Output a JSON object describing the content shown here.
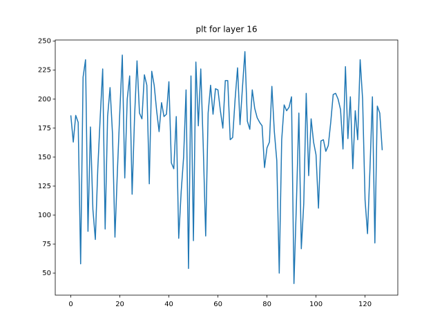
{
  "chart_data": {
    "type": "line",
    "title": "plt for layer 16",
    "x": [
      0,
      1,
      2,
      3,
      4,
      5,
      6,
      7,
      8,
      9,
      10,
      11,
      12,
      13,
      14,
      15,
      16,
      17,
      18,
      19,
      20,
      21,
      22,
      23,
      24,
      25,
      26,
      27,
      28,
      29,
      30,
      31,
      32,
      33,
      34,
      35,
      36,
      37,
      38,
      39,
      40,
      41,
      42,
      43,
      44,
      45,
      46,
      47,
      48,
      49,
      50,
      51,
      52,
      53,
      54,
      55,
      56,
      57,
      58,
      59,
      60,
      61,
      62,
      63,
      64,
      65,
      66,
      67,
      68,
      69,
      70,
      71,
      72,
      73,
      74,
      75,
      76,
      77,
      78,
      79,
      80,
      81,
      82,
      83,
      84,
      85,
      86,
      87,
      88,
      89,
      90,
      91,
      92,
      93,
      94,
      95,
      96,
      97,
      98,
      99,
      100,
      101,
      102,
      103,
      104,
      105,
      106,
      107,
      108,
      109,
      110,
      111,
      112,
      113,
      114,
      115,
      116,
      117,
      118,
      119,
      120,
      121,
      122,
      123,
      124,
      125,
      126,
      127
    ],
    "series": [
      {
        "color": "#1f77b4",
        "values": [
          186,
          163,
          186,
          180,
          58,
          219,
          234,
          86,
          176,
          105,
          79,
          140,
          185,
          226,
          88,
          185,
          210,
          170,
          81,
          138,
          190,
          238,
          132,
          200,
          220,
          118,
          185,
          233,
          188,
          183,
          221,
          212,
          127,
          224,
          212,
          190,
          172,
          197,
          185,
          187,
          215,
          145,
          140,
          185,
          80,
          120,
          150,
          208,
          54,
          220,
          78,
          232,
          177,
          226,
          160,
          82,
          188,
          212,
          187,
          209,
          208,
          190,
          175,
          216,
          216,
          165,
          167,
          200,
          227,
          178,
          210,
          241,
          181,
          174,
          208,
          192,
          184,
          180,
          177,
          141,
          158,
          163,
          211,
          172,
          147,
          50,
          165,
          195,
          190,
          193,
          202,
          41,
          110,
          188,
          71,
          110,
          205,
          134,
          183,
          163,
          152,
          106,
          164,
          165,
          155,
          160,
          180,
          204,
          205,
          200,
          191,
          157,
          228,
          166,
          202,
          140,
          190,
          165,
          234,
          200,
          113,
          84,
          140,
          202,
          76,
          194,
          188,
          156
        ]
      }
    ],
    "xlim": [
      -6.35,
      133.35
    ],
    "ylim": [
      31,
      251
    ],
    "xticks": [
      0,
      20,
      40,
      60,
      80,
      100,
      120
    ],
    "yticks": [
      50,
      75,
      100,
      125,
      150,
      175,
      200,
      225,
      250
    ]
  }
}
